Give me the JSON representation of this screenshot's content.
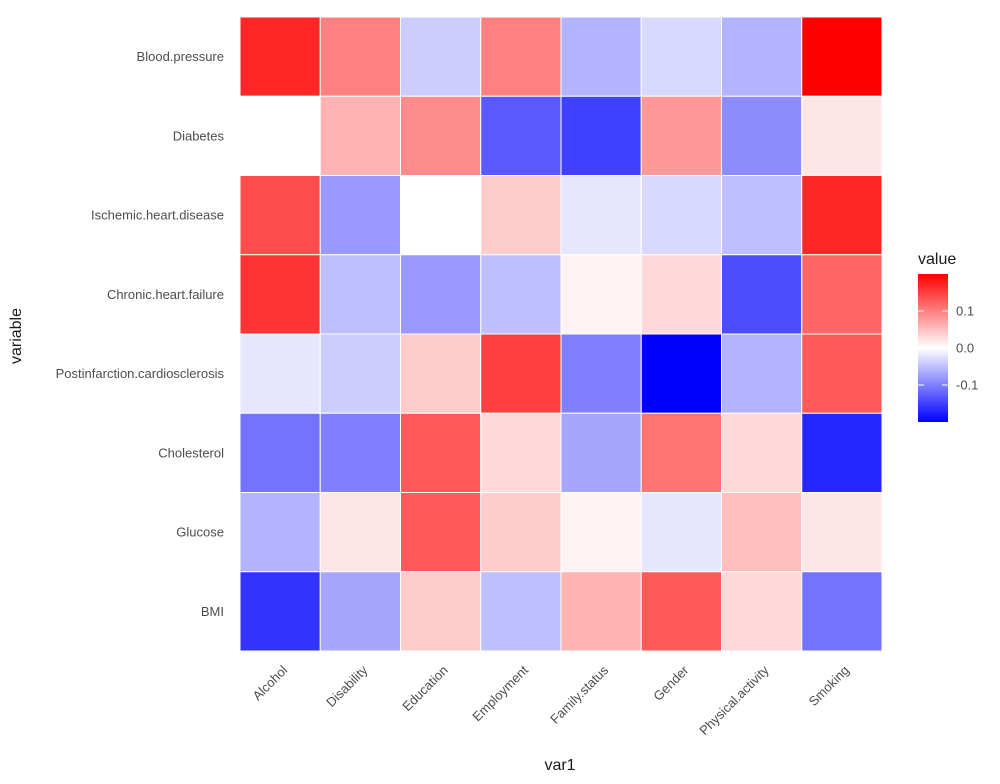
{
  "chart_data": {
    "type": "heatmap",
    "xlabel": "var1",
    "ylabel": "variable",
    "x_categories": [
      "Alcohol",
      "Disability",
      "Education",
      "Employment",
      "Family.status",
      "Gender",
      "Physical.activity",
      "Smoking"
    ],
    "y_categories": [
      "Blood.pressure",
      "Diabetes",
      "Ischemic.heart.disease",
      "Chronic.heart.failure",
      "Postinfarction.cardiosclerosis",
      "Cholesterol",
      "Glucose",
      "BMI"
    ],
    "values": [
      [
        0.17,
        0.1,
        -0.04,
        0.1,
        -0.06,
        -0.03,
        -0.06,
        0.2
      ],
      [
        0.0,
        0.06,
        0.09,
        -0.13,
        -0.15,
        0.08,
        -0.09,
        0.02
      ],
      [
        0.14,
        -0.08,
        0.0,
        0.04,
        -0.02,
        -0.03,
        -0.05,
        0.17
      ],
      [
        0.16,
        -0.05,
        -0.08,
        -0.05,
        0.01,
        0.03,
        -0.14,
        0.12
      ],
      [
        -0.02,
        -0.04,
        0.04,
        0.15,
        -0.1,
        -0.2,
        -0.06,
        0.13
      ],
      [
        -0.11,
        -0.1,
        0.13,
        0.03,
        -0.07,
        0.11,
        0.03,
        -0.17
      ],
      [
        -0.06,
        0.02,
        0.13,
        0.04,
        0.01,
        -0.02,
        0.05,
        0.02
      ],
      [
        -0.16,
        -0.07,
        0.04,
        -0.05,
        0.06,
        0.13,
        0.03,
        -0.11
      ]
    ],
    "color_scale": {
      "low": "#0000ff",
      "mid": "#ffffff",
      "high": "#ff0000",
      "limits": [
        -0.2,
        0.2
      ],
      "midpoint": 0
    },
    "legend": {
      "title": "value",
      "breaks": [
        0.1,
        0.0,
        -0.1
      ],
      "labels": [
        "0.1",
        "0.0",
        "-0.1"
      ],
      "position": "right"
    },
    "grid": true
  }
}
